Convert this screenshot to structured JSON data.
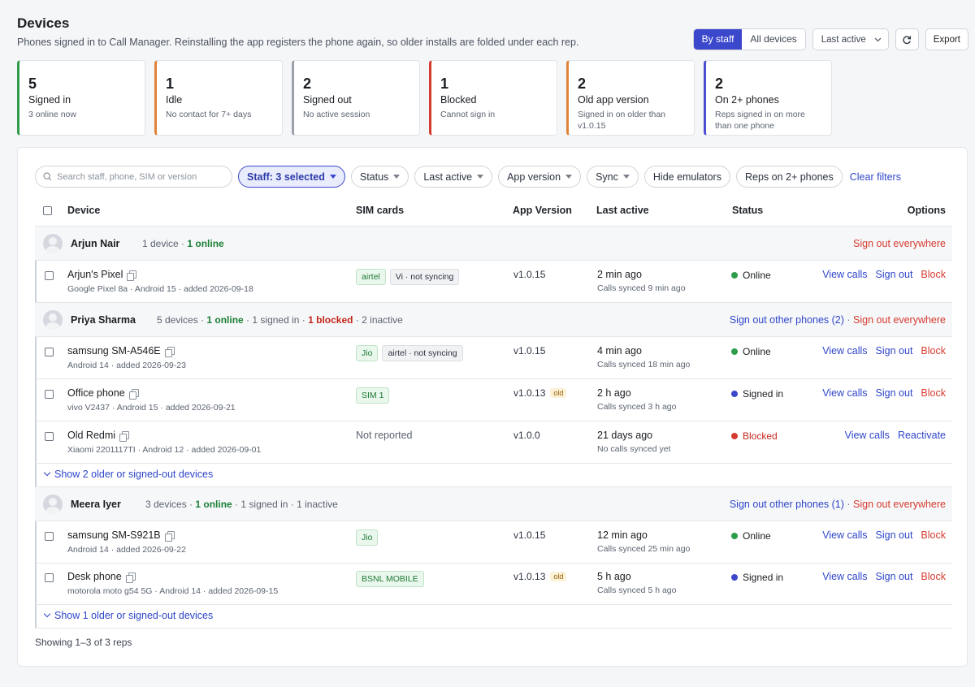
{
  "header": {
    "title": "Devices",
    "subtitle": "Phones signed in to Call Manager. Reinstalling the app registers the phone again, so older installs are folded under each rep."
  },
  "controls": {
    "view_options": [
      "By staff",
      "All devices"
    ],
    "active_view": "By staff",
    "sort_value": "Last active",
    "export_label": "Export"
  },
  "stats": [
    {
      "number": "5",
      "label": "Signed in",
      "sub": "3 online now",
      "color": "#2e9d4b"
    },
    {
      "number": "1",
      "label": "Idle",
      "sub": "No contact for 7+ days",
      "color": "#e0833a"
    },
    {
      "number": "2",
      "label": "Signed out",
      "sub": "No active session",
      "color": "#9aa1ab"
    },
    {
      "number": "1",
      "label": "Blocked",
      "sub": "Cannot sign in",
      "color": "#d63b2f"
    },
    {
      "number": "2",
      "label": "Old app version",
      "sub": "Signed in on older than v1.0.15",
      "color": "#e0833a"
    },
    {
      "number": "2",
      "label": "On 2+ phones",
      "sub": "Reps signed in on more than one phone",
      "color": "#4a4fd1"
    }
  ],
  "filters": {
    "search_placeholder": "Search staff, phone, SIM or version",
    "staff": "Staff: 3 selected",
    "status": "Status",
    "last_active": "Last active",
    "app_version": "App version",
    "sync": "Sync",
    "hide_emulators": "Hide emulators",
    "reps_on_2_phones": "Reps on 2+ phones",
    "clear": "Clear filters"
  },
  "columns": {
    "device": "Device",
    "sim": "SIM cards",
    "version": "App Version",
    "last_active": "Last active",
    "status": "Status",
    "options": "Options"
  },
  "groups": [
    {
      "name": "Arjun Nair",
      "meta_devices": "1 device",
      "meta_online": "1 online",
      "action_other": "",
      "action_all": "Sign out everywhere",
      "devices": [
        {
          "name": "Arjun's Pixel",
          "sub": "Google Pixel 8a · Android 15 · added 2026-09-18",
          "sims": [
            {
              "label": "airtel",
              "kind": "ok"
            },
            {
              "label": "Vi · not syncing",
              "kind": "warn"
            }
          ],
          "version": "v1.0.15",
          "old": "",
          "last": "2 min ago",
          "last_sub": "Calls synced 9 min ago",
          "status": "Online",
          "status_color": "#2e9d4b",
          "opt1": "View calls",
          "opt2": "Sign out",
          "opt3": "Block"
        }
      ]
    },
    {
      "name": "Priya Sharma",
      "meta_devices": "5 devices",
      "meta_online": "1 online",
      "meta_signed": "1 signed in",
      "meta_blocked": "1 blocked",
      "meta_inactive": "2 inactive",
      "action_other": "Sign out other phones (2)",
      "action_all": "Sign out everywhere",
      "devices": [
        {
          "name": "samsung SM-A546E",
          "sub": "Android 14 · added 2026-09-23",
          "sims": [
            {
              "label": "Jio",
              "kind": "ok"
            },
            {
              "label": "airtel · not syncing",
              "kind": "warn"
            }
          ],
          "version": "v1.0.15",
          "old": "",
          "last": "4 min ago",
          "last_sub": "Calls synced 18 min ago",
          "status": "Online",
          "status_color": "#2e9d4b",
          "opt1": "View calls",
          "opt2": "Sign out",
          "opt3": "Block"
        },
        {
          "name": "Office phone",
          "sub": "vivo V2437 · Android 15 · added 2026-09-21",
          "sims": [
            {
              "label": "SIM 1",
              "kind": "ok"
            }
          ],
          "version": "v1.0.13",
          "old": "old",
          "last": "2 h ago",
          "last_sub": "Calls synced 3 h ago",
          "status": "Signed in",
          "status_color": "#3b48cc",
          "opt1": "View calls",
          "opt2": "Sign out",
          "opt3": "Block"
        },
        {
          "name": "Old Redmi",
          "sub": "Xiaomi 2201117TI · Android 12 · added 2026-09-01",
          "not_reported": "Not reported",
          "version": "v1.0.0",
          "old": "",
          "last": "21 days ago",
          "last_sub": "No calls synced yet",
          "status": "Blocked",
          "status_color": "#d63b2f",
          "opt1": "View calls",
          "opt2": "Reactivate"
        }
      ],
      "show_more": "Show 2 older or signed-out devices"
    },
    {
      "name": "Meera Iyer",
      "meta_devices": "3 devices",
      "meta_online": "1 online",
      "meta_signed": "1 signed in",
      "meta_inactive": "1 inactive",
      "action_other": "Sign out other phones (1)",
      "action_all": "Sign out everywhere",
      "devices": [
        {
          "name": "samsung SM-S921B",
          "sub": "Android 14 · added 2026-09-22",
          "sims": [
            {
              "label": "Jio",
              "kind": "ok"
            }
          ],
          "version": "v1.0.15",
          "old": "",
          "last": "12 min ago",
          "last_sub": "Calls synced 25 min ago",
          "status": "Online",
          "status_color": "#2e9d4b",
          "opt1": "View calls",
          "opt2": "Sign out",
          "opt3": "Block"
        },
        {
          "name": "Desk phone",
          "sub": "motorola moto g54 5G · Android 14 · added 2026-09-15",
          "sims": [
            {
              "label": "BSNL MOBILE",
              "kind": "ok"
            }
          ],
          "version": "v1.0.13",
          "old": "old",
          "last": "5 h ago",
          "last_sub": "Calls synced 5 h ago",
          "status": "Signed in",
          "status_color": "#3b48cc",
          "opt1": "View calls",
          "opt2": "Sign out",
          "opt3": "Block"
        }
      ],
      "show_more": "Show 1 older or signed-out devices"
    }
  ],
  "footer": "Showing 1–3 of 3 reps"
}
